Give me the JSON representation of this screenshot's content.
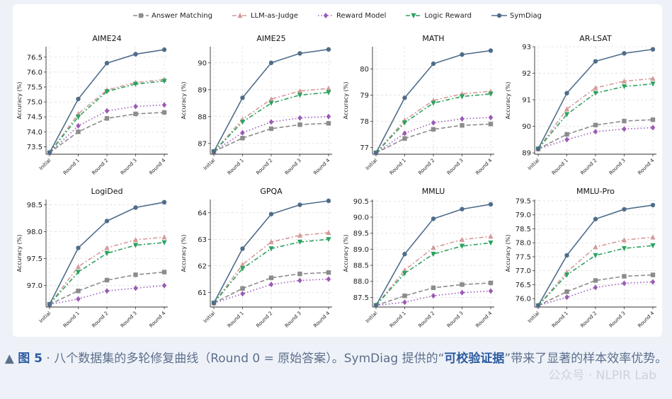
{
  "legend": [
    {
      "name": "Answer Matching",
      "color": "#8c8c8c",
      "marker": "square",
      "dash": "6,3"
    },
    {
      "name": "LLM-as-Judge",
      "color": "#d49a9a",
      "marker": "triangle-up",
      "dash": "6,3,2,3"
    },
    {
      "name": "Reward Model",
      "color": "#9b59b6",
      "marker": "diamond",
      "dash": "1.5,3"
    },
    {
      "name": "Logic Reward",
      "color": "#2ca25f",
      "marker": "triangle-down",
      "dash": "6,3,2,3"
    },
    {
      "name": "SymDiag",
      "color": "#4f6d8a",
      "marker": "circle",
      "dash": ""
    }
  ],
  "chart_data": [
    {
      "type": "line",
      "title": "AIME24",
      "ylabel": "Accuracy (%)",
      "categories": [
        "Initial",
        "Round 1",
        "Round 2",
        "Round 3",
        "Round 4"
      ],
      "ylim": [
        73.25,
        76.85
      ],
      "yticks": [
        "73.5",
        "74.0",
        "74.5",
        "75.0",
        "75.5",
        "76.0",
        "76.5"
      ],
      "grid": true,
      "series": [
        {
          "name": "Answer Matching",
          "values": [
            73.3,
            74.0,
            74.45,
            74.6,
            74.65
          ]
        },
        {
          "name": "LLM-as-Judge",
          "values": [
            73.3,
            74.6,
            75.4,
            75.65,
            75.75
          ]
        },
        {
          "name": "Reward Model",
          "values": [
            73.3,
            74.2,
            74.7,
            74.85,
            74.9
          ]
        },
        {
          "name": "Logic Reward",
          "values": [
            73.3,
            74.5,
            75.35,
            75.6,
            75.7
          ]
        },
        {
          "name": "SymDiag",
          "values": [
            73.3,
            75.1,
            76.3,
            76.6,
            76.75
          ]
        }
      ]
    },
    {
      "type": "line",
      "title": "AIME25",
      "ylabel": "Accuracy (%)",
      "categories": [
        "Initial",
        "Round 1",
        "Round 2",
        "Round 3",
        "Round 4"
      ],
      "ylim": [
        86.6,
        90.6
      ],
      "yticks": [
        "87",
        "88",
        "89",
        "90"
      ],
      "grid": true,
      "series": [
        {
          "name": "Answer Matching",
          "values": [
            86.7,
            87.2,
            87.55,
            87.7,
            87.75
          ]
        },
        {
          "name": "LLM-as-Judge",
          "values": [
            86.7,
            87.9,
            88.65,
            88.95,
            89.05
          ]
        },
        {
          "name": "Reward Model",
          "values": [
            86.7,
            87.4,
            87.8,
            87.95,
            88.0
          ]
        },
        {
          "name": "Logic Reward",
          "values": [
            86.7,
            87.8,
            88.5,
            88.8,
            88.9
          ]
        },
        {
          "name": "SymDiag",
          "values": [
            86.7,
            88.7,
            90.0,
            90.35,
            90.5
          ]
        }
      ]
    },
    {
      "type": "line",
      "title": "MATH",
      "ylabel": "Accuracy (%)",
      "categories": [
        "Initial",
        "Round 1",
        "Round 2",
        "Round 3",
        "Round 4"
      ],
      "ylim": [
        76.75,
        80.85
      ],
      "yticks": [
        "77",
        "78",
        "79",
        "80"
      ],
      "grid": true,
      "series": [
        {
          "name": "Answer Matching",
          "values": [
            76.8,
            77.35,
            77.7,
            77.85,
            77.9
          ]
        },
        {
          "name": "LLM-as-Judge",
          "values": [
            76.8,
            78.05,
            78.8,
            79.05,
            79.15
          ]
        },
        {
          "name": "Reward Model",
          "values": [
            76.8,
            77.55,
            77.95,
            78.1,
            78.15
          ]
        },
        {
          "name": "Logic Reward",
          "values": [
            76.8,
            77.95,
            78.7,
            78.95,
            79.05
          ]
        },
        {
          "name": "SymDiag",
          "values": [
            76.8,
            78.9,
            80.2,
            80.55,
            80.7
          ]
        }
      ]
    },
    {
      "type": "line",
      "title": "AR-LSAT",
      "ylabel": "Accuracy (%)",
      "categories": [
        "Initial",
        "Round 1",
        "Round 2",
        "Round 3",
        "Round 4"
      ],
      "ylim": [
        88.95,
        93.0
      ],
      "yticks": [
        "89",
        "90",
        "91",
        "92",
        "93"
      ],
      "grid": true,
      "series": [
        {
          "name": "Answer Matching",
          "values": [
            89.15,
            89.7,
            90.05,
            90.2,
            90.25
          ]
        },
        {
          "name": "LLM-as-Judge",
          "values": [
            89.15,
            90.65,
            91.45,
            91.7,
            91.8
          ]
        },
        {
          "name": "Reward Model",
          "values": [
            89.15,
            89.5,
            89.8,
            89.9,
            89.95
          ]
        },
        {
          "name": "Logic Reward",
          "values": [
            89.15,
            90.45,
            91.25,
            91.5,
            91.6
          ]
        },
        {
          "name": "SymDiag",
          "values": [
            89.15,
            91.25,
            92.45,
            92.75,
            92.9
          ]
        }
      ]
    },
    {
      "type": "line",
      "title": "LogiDed",
      "ylabel": "Accuracy (%)",
      "categories": [
        "Initial",
        "Round 1",
        "Round 2",
        "Round 3",
        "Round 4"
      ],
      "ylim": [
        96.6,
        98.6
      ],
      "yticks": [
        "97.0",
        "97.5",
        "98.0",
        "98.5"
      ],
      "grid": true,
      "series": [
        {
          "name": "Answer Matching",
          "values": [
            96.65,
            96.9,
            97.1,
            97.2,
            97.25
          ]
        },
        {
          "name": "LLM-as-Judge",
          "values": [
            96.65,
            97.35,
            97.7,
            97.85,
            97.9
          ]
        },
        {
          "name": "Reward Model",
          "values": [
            96.65,
            96.75,
            96.9,
            96.95,
            97.0
          ]
        },
        {
          "name": "Logic Reward",
          "values": [
            96.65,
            97.25,
            97.6,
            97.75,
            97.8
          ]
        },
        {
          "name": "SymDiag",
          "values": [
            96.65,
            97.7,
            98.2,
            98.45,
            98.55
          ]
        }
      ]
    },
    {
      "type": "line",
      "title": "GPQA",
      "ylabel": "Accuracy (%)",
      "categories": [
        "Initial",
        "Round 1",
        "Round 2",
        "Round 3",
        "Round 4"
      ],
      "ylim": [
        60.45,
        64.5
      ],
      "yticks": [
        "61",
        "62",
        "63",
        "64"
      ],
      "grid": true,
      "series": [
        {
          "name": "Answer Matching",
          "values": [
            60.6,
            61.15,
            61.55,
            61.7,
            61.75
          ]
        },
        {
          "name": "LLM-as-Judge",
          "values": [
            60.6,
            62.05,
            62.9,
            63.15,
            63.25
          ]
        },
        {
          "name": "Reward Model",
          "values": [
            60.6,
            60.95,
            61.3,
            61.45,
            61.5
          ]
        },
        {
          "name": "Logic Reward",
          "values": [
            60.6,
            61.9,
            62.65,
            62.9,
            63.0
          ]
        },
        {
          "name": "SymDiag",
          "values": [
            60.6,
            62.65,
            63.95,
            64.3,
            64.45
          ]
        }
      ]
    },
    {
      "type": "line",
      "title": "MMLU",
      "ylabel": "Accuracy (%)",
      "categories": [
        "Initial",
        "Round 1",
        "Round 2",
        "Round 3",
        "Round 4"
      ],
      "ylim": [
        87.2,
        90.55
      ],
      "yticks": [
        "87.5",
        "88.0",
        "88.5",
        "89.0",
        "89.5",
        "90.0",
        "90.5"
      ],
      "grid": true,
      "series": [
        {
          "name": "Answer Matching",
          "values": [
            87.25,
            87.55,
            87.8,
            87.9,
            87.95
          ]
        },
        {
          "name": "LLM-as-Judge",
          "values": [
            87.25,
            88.35,
            89.05,
            89.3,
            89.4
          ]
        },
        {
          "name": "Reward Model",
          "values": [
            87.25,
            87.35,
            87.55,
            87.65,
            87.7
          ]
        },
        {
          "name": "Logic Reward",
          "values": [
            87.25,
            88.25,
            88.85,
            89.1,
            89.2
          ]
        },
        {
          "name": "SymDiag",
          "values": [
            87.25,
            88.85,
            89.95,
            90.25,
            90.4
          ]
        }
      ]
    },
    {
      "type": "line",
      "title": "MMLU-Pro",
      "ylabel": "Accuracy (%)",
      "categories": [
        "Initial",
        "Round 1",
        "Round 2",
        "Round 3",
        "Round 4"
      ],
      "ylim": [
        75.7,
        79.55
      ],
      "yticks": [
        "76.0",
        "76.5",
        "77.0",
        "77.5",
        "78.0",
        "78.5",
        "79.0",
        "79.5"
      ],
      "grid": true,
      "series": [
        {
          "name": "Answer Matching",
          "values": [
            75.75,
            76.25,
            76.65,
            76.8,
            76.85
          ]
        },
        {
          "name": "LLM-as-Judge",
          "values": [
            75.75,
            76.95,
            77.85,
            78.1,
            78.2
          ]
        },
        {
          "name": "Reward Model",
          "values": [
            75.75,
            76.05,
            76.4,
            76.55,
            76.6
          ]
        },
        {
          "name": "Logic Reward",
          "values": [
            75.75,
            76.85,
            77.55,
            77.8,
            77.9
          ]
        },
        {
          "name": "SymDiag",
          "values": [
            75.75,
            77.55,
            78.85,
            79.2,
            79.35
          ]
        }
      ]
    }
  ],
  "caption": {
    "marker": "▲",
    "fig_label": "图 5",
    "text_before": " · 八个数据集的多轮修复曲线（Round 0 = 原始答案）。SymDiag 提供的“",
    "highlight": "可校验证据",
    "text_after": "”带来了显著的样本效率优势。"
  },
  "watermark": "公众号 · NLPIR Lab"
}
